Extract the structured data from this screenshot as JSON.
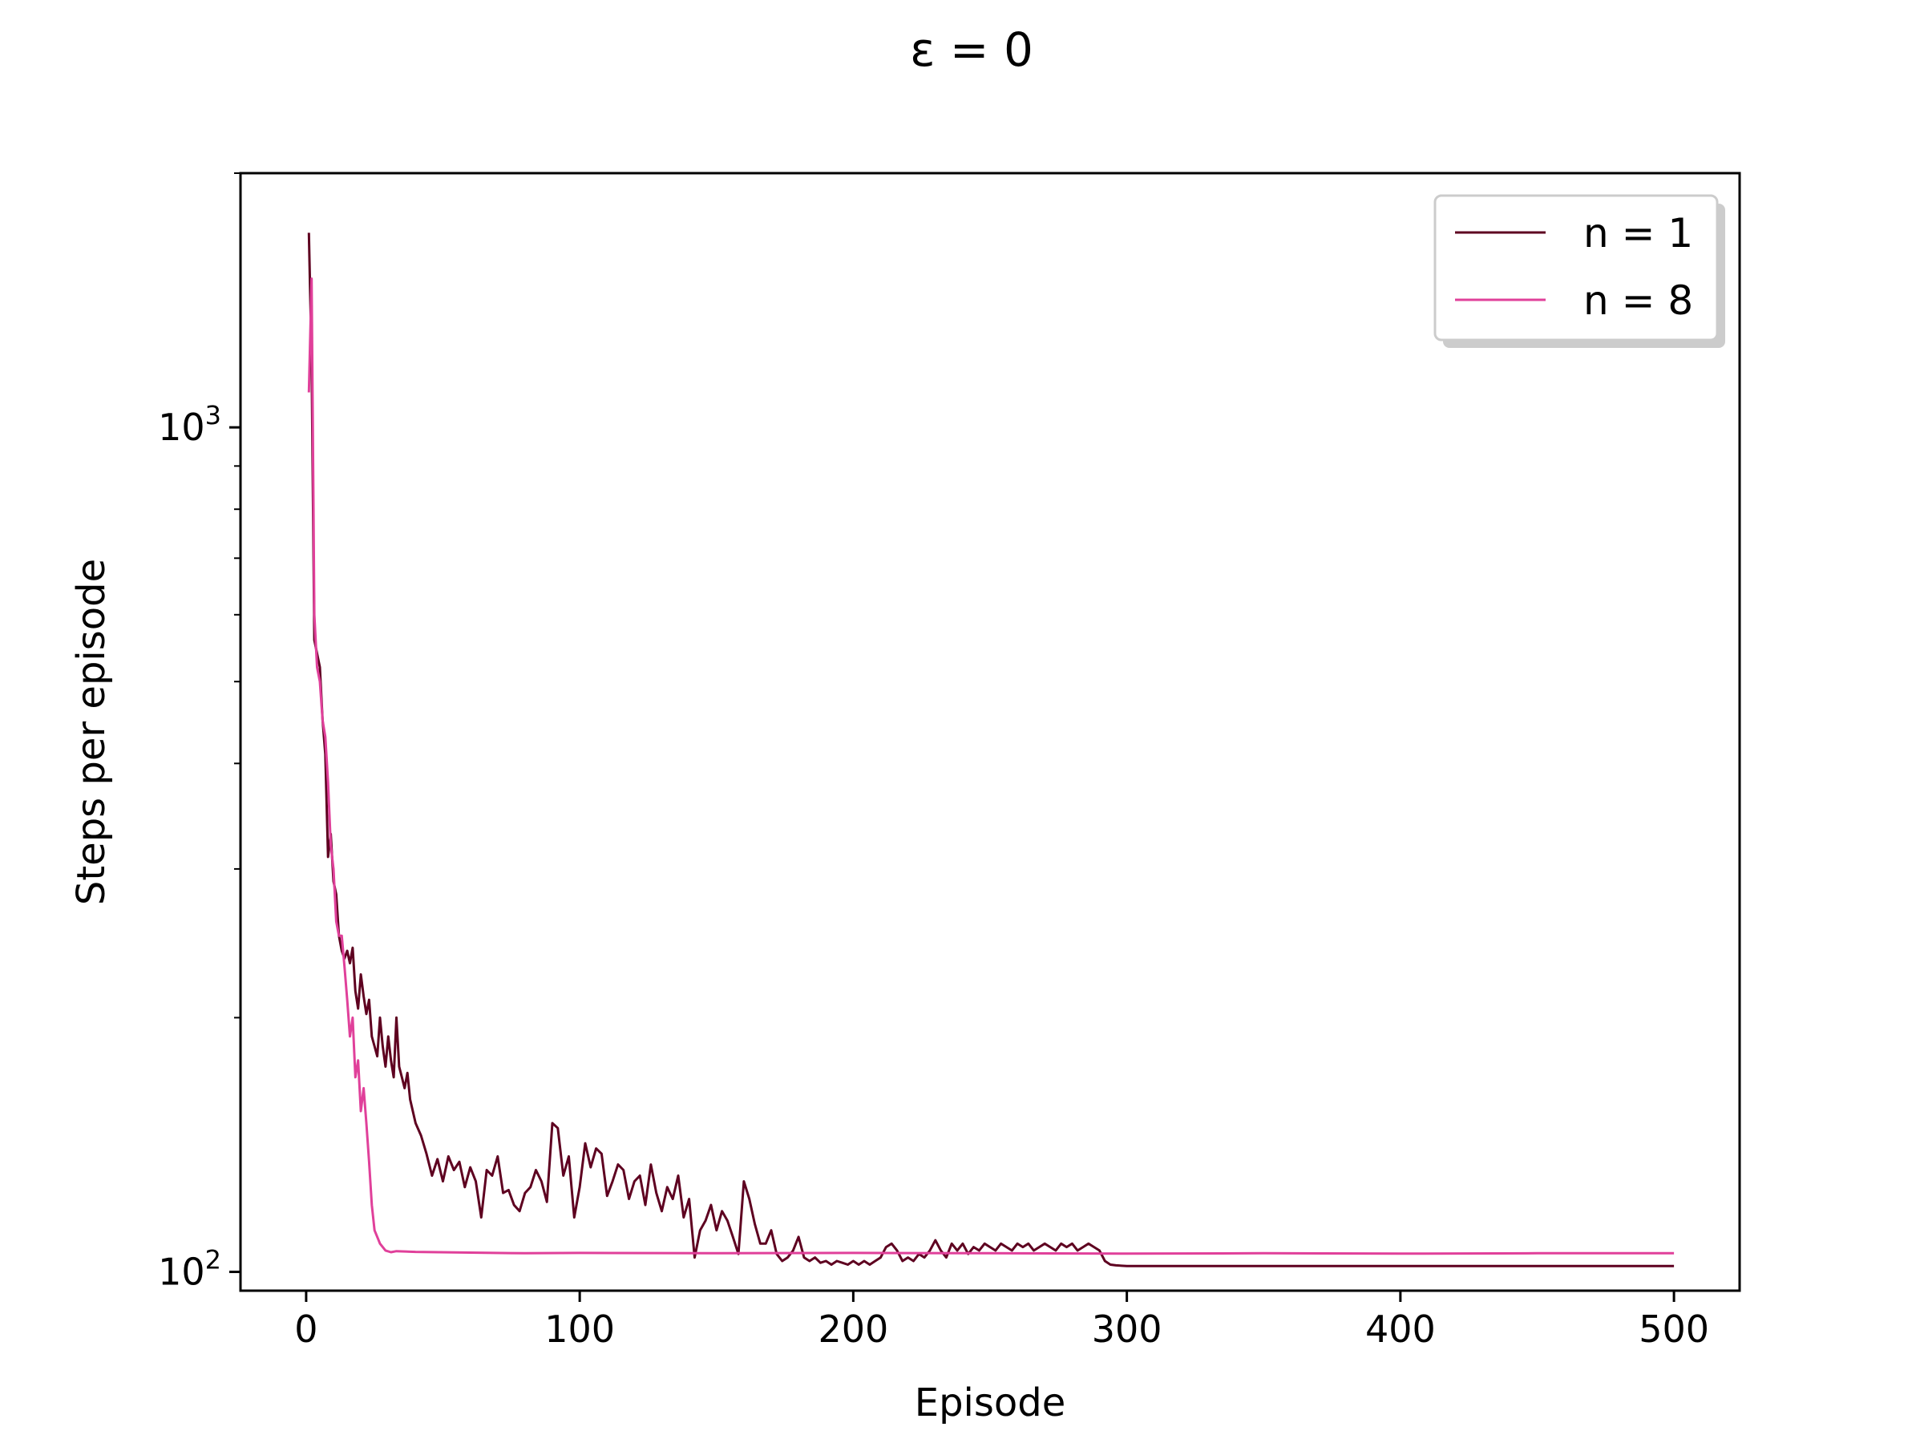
{
  "chart_data": {
    "type": "line",
    "title": "ε = 0",
    "xlabel": "Episode",
    "ylabel": "Steps per episode",
    "xlim": [
      -24,
      524
    ],
    "ylim": [
      95,
      2000
    ],
    "yscale": "log",
    "xticks": [
      0,
      100,
      200,
      300,
      400,
      500
    ],
    "xtick_labels": [
      "0",
      "100",
      "200",
      "300",
      "400",
      "500"
    ],
    "ytick_labels": [
      {
        "value": 100,
        "base": "10",
        "exp": "2"
      },
      {
        "value": 1000,
        "base": "10",
        "exp": "3"
      }
    ],
    "y_minor_ticks": [
      200,
      300,
      400,
      500,
      600,
      700,
      800,
      900,
      2000
    ],
    "grid": false,
    "legend_position": "top-right",
    "series": [
      {
        "name": "n = 1",
        "color": "#5e0020",
        "points": [
          [
            1,
            1700
          ],
          [
            2,
            1200
          ],
          [
            3,
            560
          ],
          [
            5,
            520
          ],
          [
            6,
            450
          ],
          [
            7,
            410
          ],
          [
            8,
            310
          ],
          [
            9,
            330
          ],
          [
            10,
            290
          ],
          [
            11,
            280
          ],
          [
            12,
            250
          ],
          [
            13,
            240
          ],
          [
            14,
            235
          ],
          [
            15,
            240
          ],
          [
            16,
            232
          ],
          [
            17,
            242
          ],
          [
            18,
            215
          ],
          [
            19,
            205
          ],
          [
            20,
            225
          ],
          [
            21,
            212
          ],
          [
            22,
            202
          ],
          [
            23,
            210
          ],
          [
            24,
            190
          ],
          [
            25,
            185
          ],
          [
            26,
            180
          ],
          [
            27,
            200
          ],
          [
            28,
            185
          ],
          [
            29,
            175
          ],
          [
            30,
            190
          ],
          [
            31,
            178
          ],
          [
            32,
            170
          ],
          [
            33,
            200
          ],
          [
            34,
            175
          ],
          [
            35,
            170
          ],
          [
            36,
            165
          ],
          [
            37,
            172
          ],
          [
            38,
            160
          ],
          [
            40,
            150
          ],
          [
            42,
            145
          ],
          [
            44,
            138
          ],
          [
            46,
            130
          ],
          [
            48,
            136
          ],
          [
            50,
            128
          ],
          [
            52,
            137
          ],
          [
            54,
            132
          ],
          [
            56,
            135
          ],
          [
            58,
            126
          ],
          [
            60,
            133
          ],
          [
            62,
            128
          ],
          [
            64,
            116
          ],
          [
            66,
            132
          ],
          [
            68,
            130
          ],
          [
            70,
            137
          ],
          [
            72,
            124
          ],
          [
            74,
            125
          ],
          [
            76,
            120
          ],
          [
            78,
            118
          ],
          [
            80,
            124
          ],
          [
            82,
            126
          ],
          [
            84,
            132
          ],
          [
            86,
            128
          ],
          [
            88,
            121
          ],
          [
            90,
            150
          ],
          [
            92,
            148
          ],
          [
            94,
            130
          ],
          [
            96,
            137
          ],
          [
            98,
            116
          ],
          [
            100,
            126
          ],
          [
            102,
            142
          ],
          [
            104,
            133
          ],
          [
            106,
            140
          ],
          [
            108,
            138
          ],
          [
            110,
            123
          ],
          [
            112,
            128
          ],
          [
            114,
            134
          ],
          [
            116,
            132
          ],
          [
            118,
            122
          ],
          [
            120,
            128
          ],
          [
            122,
            130
          ],
          [
            124,
            120
          ],
          [
            126,
            134
          ],
          [
            128,
            124
          ],
          [
            130,
            118
          ],
          [
            132,
            126
          ],
          [
            134,
            122
          ],
          [
            136,
            130
          ],
          [
            138,
            116
          ],
          [
            140,
            122
          ],
          [
            142,
            104
          ],
          [
            144,
            112
          ],
          [
            146,
            115
          ],
          [
            148,
            120
          ],
          [
            150,
            112
          ],
          [
            152,
            118
          ],
          [
            154,
            115
          ],
          [
            156,
            110
          ],
          [
            158,
            105
          ],
          [
            160,
            128
          ],
          [
            162,
            122
          ],
          [
            164,
            114
          ],
          [
            166,
            108
          ],
          [
            168,
            108
          ],
          [
            170,
            112
          ],
          [
            172,
            105
          ],
          [
            174,
            103
          ],
          [
            176,
            104
          ],
          [
            178,
            106
          ],
          [
            180,
            110
          ],
          [
            182,
            104
          ],
          [
            184,
            103
          ],
          [
            186,
            104
          ],
          [
            188,
            102.5
          ],
          [
            190,
            103
          ],
          [
            192,
            102
          ],
          [
            194,
            103
          ],
          [
            196,
            102.5
          ],
          [
            198,
            102
          ],
          [
            200,
            103
          ],
          [
            202,
            102
          ],
          [
            204,
            103
          ],
          [
            206,
            102
          ],
          [
            208,
            103
          ],
          [
            210,
            104
          ],
          [
            212,
            107
          ],
          [
            214,
            108
          ],
          [
            216,
            106
          ],
          [
            218,
            103
          ],
          [
            220,
            104
          ],
          [
            222,
            103
          ],
          [
            224,
            105
          ],
          [
            226,
            104
          ],
          [
            228,
            106
          ],
          [
            230,
            109
          ],
          [
            232,
            106
          ],
          [
            234,
            104
          ],
          [
            236,
            108
          ],
          [
            238,
            106
          ],
          [
            240,
            108
          ],
          [
            242,
            105
          ],
          [
            244,
            107
          ],
          [
            246,
            106
          ],
          [
            248,
            108
          ],
          [
            250,
            107
          ],
          [
            252,
            106
          ],
          [
            254,
            108
          ],
          [
            256,
            107
          ],
          [
            258,
            106
          ],
          [
            260,
            108
          ],
          [
            262,
            107
          ],
          [
            264,
            108
          ],
          [
            266,
            106
          ],
          [
            268,
            107
          ],
          [
            270,
            108
          ],
          [
            272,
            107
          ],
          [
            274,
            106
          ],
          [
            276,
            108
          ],
          [
            278,
            107
          ],
          [
            280,
            108
          ],
          [
            282,
            106
          ],
          [
            284,
            107
          ],
          [
            286,
            108
          ],
          [
            288,
            107
          ],
          [
            290,
            106
          ],
          [
            292,
            103
          ],
          [
            294,
            102
          ],
          [
            296,
            101.8
          ],
          [
            300,
            101.6
          ],
          [
            350,
            101.6
          ],
          [
            400,
            101.6
          ],
          [
            450,
            101.6
          ],
          [
            500,
            101.6
          ]
        ]
      },
      {
        "name": "n = 8",
        "color": "#e0409a",
        "points": [
          [
            1,
            1100
          ],
          [
            2,
            1500
          ],
          [
            3,
            600
          ],
          [
            4,
            520
          ],
          [
            5,
            500
          ],
          [
            6,
            450
          ],
          [
            7,
            430
          ],
          [
            8,
            380
          ],
          [
            9,
            320
          ],
          [
            10,
            300
          ],
          [
            11,
            260
          ],
          [
            12,
            250
          ],
          [
            13,
            250
          ],
          [
            14,
            230
          ],
          [
            15,
            210
          ],
          [
            16,
            190
          ],
          [
            17,
            200
          ],
          [
            18,
            170
          ],
          [
            19,
            178
          ],
          [
            20,
            155
          ],
          [
            21,
            165
          ],
          [
            22,
            150
          ],
          [
            23,
            135
          ],
          [
            24,
            120
          ],
          [
            25,
            112
          ],
          [
            26,
            110
          ],
          [
            27,
            108
          ],
          [
            29,
            106
          ],
          [
            31,
            105.5
          ],
          [
            33,
            105.8
          ],
          [
            40,
            105.6
          ],
          [
            60,
            105.4
          ],
          [
            80,
            105.2
          ],
          [
            100,
            105.3
          ],
          [
            150,
            105.2
          ],
          [
            200,
            105.3
          ],
          [
            250,
            105.2
          ],
          [
            300,
            105.1
          ],
          [
            350,
            105.2
          ],
          [
            400,
            105.1
          ],
          [
            450,
            105.2
          ],
          [
            500,
            105.2
          ]
        ]
      }
    ]
  }
}
